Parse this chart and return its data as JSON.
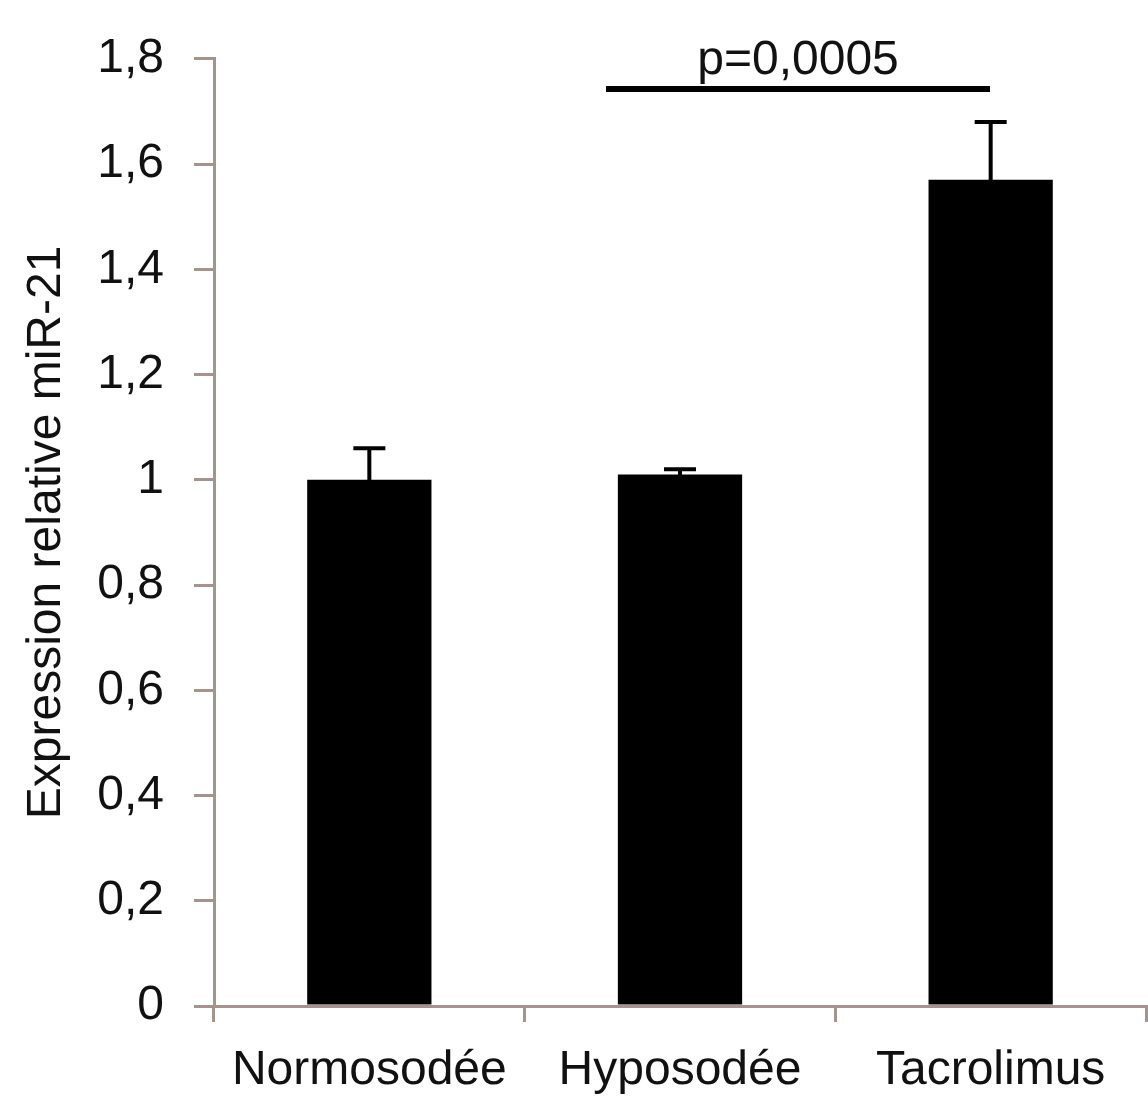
{
  "chart_data": {
    "type": "bar",
    "ylabel": "Expression relative miR-21",
    "categories": [
      "Normosodée",
      "Hyposodée",
      "Tacrolimus"
    ],
    "values": [
      1.0,
      1.01,
      1.57
    ],
    "errors": [
      0.06,
      0.01,
      0.11
    ],
    "color": "#000000",
    "ylim": [
      0,
      1.8
    ],
    "yticks": [
      0,
      {
        "value": 0.2,
        "label": "0,2"
      },
      {
        "value": 0.4,
        "label": "0,4"
      },
      {
        "value": 0.6,
        "label": "0,6"
      },
      {
        "value": 0.8,
        "label": "0,8"
      },
      1,
      {
        "value": 1.2,
        "label": "1,2"
      },
      {
        "value": 1.4,
        "label": "1,4"
      },
      {
        "value": 1.6,
        "label": "1,6"
      },
      {
        "value": 1.8,
        "label": "1,8"
      }
    ],
    "annotations": [
      "p=0,0005"
    ]
  }
}
